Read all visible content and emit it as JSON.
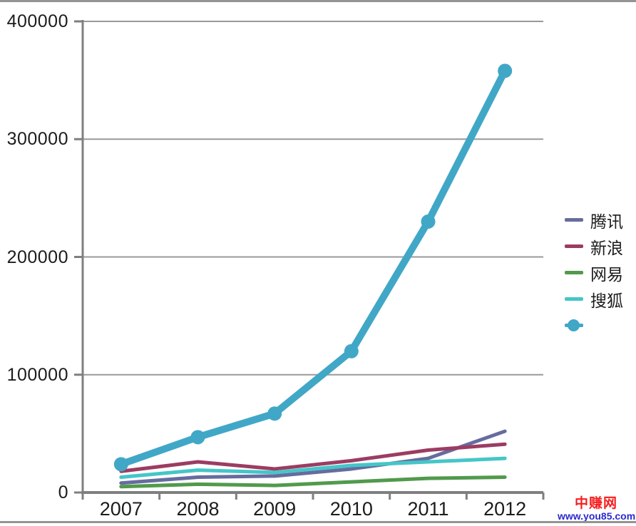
{
  "chart_data": {
    "type": "line",
    "title": "",
    "xlabel": "",
    "ylabel": "",
    "categories": [
      "2007",
      "2008",
      "2009",
      "2010",
      "2011",
      "2012"
    ],
    "series": [
      {
        "id": "tencent",
        "name": "腾讯",
        "color": "#666C9E",
        "line_width": 5,
        "marker": false,
        "values": [
          8000,
          13000,
          14000,
          20000,
          29000,
          52000
        ]
      },
      {
        "id": "sina",
        "name": "新浪",
        "color": "#9C3C62",
        "line_width": 5,
        "marker": false,
        "values": [
          18000,
          26000,
          20000,
          27000,
          36000,
          41000
        ]
      },
      {
        "id": "netease",
        "name": "网易",
        "color": "#519A4C",
        "line_width": 5,
        "marker": false,
        "values": [
          5000,
          7000,
          6000,
          9000,
          12000,
          13000
        ]
      },
      {
        "id": "sohu",
        "name": "搜狐",
        "color": "#45C6C8",
        "line_width": 5,
        "marker": false,
        "values": [
          13000,
          19000,
          17000,
          23000,
          26000,
          29000
        ]
      },
      {
        "id": "highlight",
        "name": "",
        "color": "#41A7C7",
        "line_width": 10,
        "marker": true,
        "marker_radius": 10,
        "values": [
          24000,
          47000,
          67000,
          120000,
          230000,
          358000
        ]
      }
    ],
    "ylim": [
      0,
      400000
    ],
    "ytick_interval": 100000,
    "yticks": [
      {
        "value": 0,
        "label": "0"
      },
      {
        "value": 100000,
        "label": "100000"
      },
      {
        "value": 200000,
        "label": "200000"
      },
      {
        "value": 300000,
        "label": "300000"
      },
      {
        "value": 400000,
        "label": "400000"
      }
    ],
    "grid": "horizontal",
    "legend_position": "right"
  },
  "colors": {
    "axis": "#7f7f7f",
    "grid": "#999999",
    "border": "#949494",
    "text": "#1c1c1c"
  },
  "watermark": {
    "title": "中赚网",
    "title_color": "#f81e1e",
    "url": "www.you85.com",
    "url_color": "#2a2acc"
  }
}
